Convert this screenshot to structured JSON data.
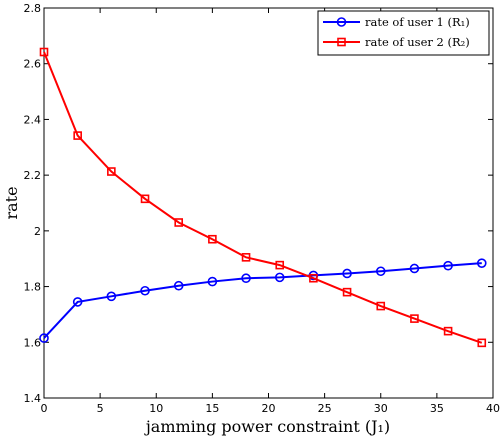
{
  "chart_data": {
    "type": "line",
    "xlabel": "jamming power constraint (J₁)",
    "ylabel": "rate",
    "xlim": [
      0,
      40
    ],
    "ylim": [
      1.4,
      2.8
    ],
    "xticks": [
      0,
      5,
      10,
      15,
      20,
      25,
      30,
      35,
      40
    ],
    "yticks": [
      1.4,
      1.6,
      1.8,
      2.0,
      2.2,
      2.4,
      2.6,
      2.8
    ],
    "xtick_labels": [
      "0",
      "5",
      "10",
      "15",
      "20",
      "25",
      "30",
      "35",
      "40"
    ],
    "ytick_labels": [
      "1.4",
      "1.6",
      "1.8",
      "2",
      "2.2",
      "2.4",
      "2.6",
      "2.8"
    ],
    "grid": false,
    "legend_position": "top-right",
    "x": [
      0,
      3,
      6,
      9,
      12,
      15,
      18,
      21,
      24,
      27,
      30,
      33,
      36,
      39
    ],
    "series": [
      {
        "name": "rate of user 1 (R₁)",
        "color": "#0000ff",
        "marker": "circle",
        "values": [
          1.615,
          1.745,
          1.765,
          1.785,
          1.803,
          1.818,
          1.83,
          1.833,
          1.84,
          1.847,
          1.855,
          1.865,
          1.875,
          1.884
        ]
      },
      {
        "name": "rate of user 2 (R₂)",
        "color": "#ff0000",
        "marker": "square",
        "values": [
          2.642,
          2.342,
          2.213,
          2.115,
          2.03,
          1.97,
          1.905,
          1.877,
          1.83,
          1.78,
          1.73,
          1.685,
          1.64,
          1.598
        ]
      }
    ]
  }
}
